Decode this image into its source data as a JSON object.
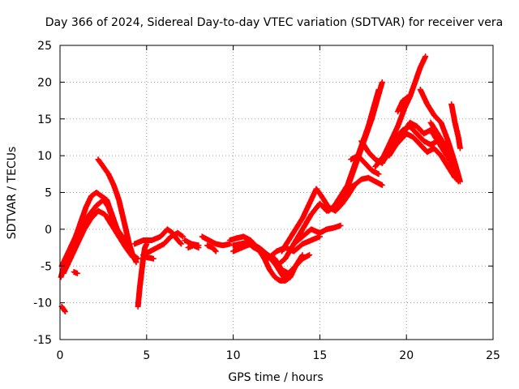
{
  "chart_data": {
    "type": "scatter",
    "title": "Day 366 of 2024, Sidereal Day-to-day VTEC variation (SDTVAR) for receiver vera",
    "xlabel": "GPS time / hours",
    "ylabel": "SDTVAR / TECUs",
    "xlim": [
      0,
      25
    ],
    "ylim": [
      -15,
      25
    ],
    "xticks": [
      "0",
      "5",
      "10",
      "15",
      "20",
      "25"
    ],
    "yticks": [
      "-15",
      "-10",
      "-5",
      "0",
      "5",
      "10",
      "15",
      "20",
      "25"
    ],
    "grid": true,
    "marker": "+",
    "series_color": "#ff0000",
    "traces": [
      [
        [
          0.05,
          -6.5
        ],
        [
          0.3,
          -4.5
        ],
        [
          0.6,
          -2.5
        ],
        [
          0.9,
          -1
        ],
        [
          1.2,
          1
        ],
        [
          1.5,
          3
        ],
        [
          1.8,
          4.5
        ],
        [
          2.1,
          5
        ],
        [
          2.4,
          4.5
        ],
        [
          2.7,
          4
        ],
        [
          3.0,
          2
        ],
        [
          3.3,
          0
        ],
        [
          3.6,
          -1
        ],
        [
          3.9,
          -2.5
        ],
        [
          4.2,
          -3.5
        ],
        [
          4.5,
          -4
        ]
      ],
      [
        [
          0.1,
          -5
        ],
        [
          0.5,
          -3
        ],
        [
          0.9,
          -1.5
        ],
        [
          1.3,
          0.5
        ],
        [
          1.7,
          2
        ],
        [
          2.1,
          3.2
        ],
        [
          2.5,
          4
        ],
        [
          2.8,
          3
        ],
        [
          3.1,
          1
        ],
        [
          3.4,
          -0.5
        ],
        [
          3.7,
          -1.8
        ],
        [
          4.0,
          -3
        ]
      ],
      [
        [
          0.2,
          -6
        ],
        [
          0.6,
          -4
        ],
        [
          1.0,
          -2
        ],
        [
          1.4,
          0
        ],
        [
          1.8,
          1.5
        ],
        [
          2.2,
          2.5
        ],
        [
          2.6,
          2
        ],
        [
          3.0,
          0.5
        ],
        [
          3.4,
          -1
        ],
        [
          3.8,
          -2.5
        ],
        [
          4.2,
          -3.8
        ]
      ],
      [
        [
          2.2,
          9.5
        ],
        [
          2.5,
          8.5
        ],
        [
          2.8,
          7.5
        ],
        [
          3.1,
          6
        ],
        [
          3.4,
          4
        ],
        [
          3.6,
          2
        ],
        [
          3.8,
          0
        ],
        [
          4.0,
          -2
        ],
        [
          4.2,
          -3.5
        ],
        [
          4.4,
          -4.5
        ]
      ],
      [
        [
          0.1,
          -10.5
        ],
        [
          0.3,
          -11.2
        ]
      ],
      [
        [
          0.8,
          -5.8
        ],
        [
          1.0,
          -6
        ]
      ],
      [
        [
          4.5,
          -10.5
        ],
        [
          4.6,
          -8
        ],
        [
          4.7,
          -6
        ],
        [
          4.8,
          -4
        ],
        [
          4.9,
          -2.5
        ],
        [
          5.0,
          -2
        ]
      ],
      [
        [
          4.3,
          -2
        ],
        [
          4.8,
          -1.5
        ],
        [
          5.3,
          -1.5
        ],
        [
          5.8,
          -1
        ],
        [
          6.2,
          0
        ],
        [
          6.5,
          -0.5
        ],
        [
          6.8,
          -1.5
        ],
        [
          7.0,
          -2
        ]
      ],
      [
        [
          4.8,
          -3.5
        ],
        [
          5.2,
          -3
        ],
        [
          5.6,
          -2.5
        ],
        [
          6.0,
          -2
        ],
        [
          6.4,
          -1
        ],
        [
          6.8,
          -0.5
        ],
        [
          7.1,
          -1
        ]
      ],
      [
        [
          5.0,
          -3.8
        ],
        [
          5.4,
          -4
        ]
      ],
      [
        [
          7.2,
          -1.5
        ],
        [
          7.6,
          -2
        ],
        [
          8.0,
          -2.2
        ]
      ],
      [
        [
          7.4,
          -2.5
        ],
        [
          7.7,
          -2.2
        ],
        [
          8.0,
          -2.5
        ]
      ],
      [
        [
          8.2,
          -1
        ],
        [
          8.6,
          -1.5
        ],
        [
          9.0,
          -2
        ],
        [
          9.4,
          -2.2
        ],
        [
          9.8,
          -2
        ]
      ],
      [
        [
          8.5,
          -2.2
        ],
        [
          8.8,
          -2.5
        ],
        [
          9.0,
          -3
        ]
      ],
      [
        [
          9.8,
          -1.5
        ],
        [
          10.2,
          -1.2
        ],
        [
          10.6,
          -1
        ],
        [
          11.0,
          -1.5
        ],
        [
          11.4,
          -2.5
        ],
        [
          11.8,
          -4
        ],
        [
          12.1,
          -5.5
        ],
        [
          12.4,
          -6.5
        ],
        [
          12.7,
          -7
        ],
        [
          13.0,
          -7
        ],
        [
          13.3,
          -6.5
        ],
        [
          13.6,
          -5
        ],
        [
          14.0,
          -3.5
        ]
      ],
      [
        [
          10.0,
          -2.2
        ],
        [
          10.4,
          -2
        ],
        [
          10.8,
          -1.8
        ],
        [
          11.2,
          -2.5
        ],
        [
          11.6,
          -3
        ],
        [
          12.0,
          -3.5
        ],
        [
          12.4,
          -4
        ],
        [
          12.8,
          -5.5
        ],
        [
          13.2,
          -6
        ],
        [
          13.6,
          -5
        ],
        [
          14.0,
          -4
        ],
        [
          14.4,
          -3.5
        ]
      ],
      [
        [
          10.0,
          -3
        ],
        [
          10.5,
          -2.5
        ],
        [
          11.0,
          -2
        ],
        [
          11.5,
          -2.5
        ],
        [
          12.0,
          -3.5
        ],
        [
          12.5,
          -5
        ],
        [
          12.9,
          -6.5
        ],
        [
          13.3,
          -6
        ]
      ],
      [
        [
          12.0,
          -4
        ],
        [
          12.5,
          -3
        ],
        [
          13.0,
          -2.5
        ],
        [
          13.5,
          -3
        ],
        [
          14.0,
          -2
        ],
        [
          14.5,
          -1.5
        ],
        [
          15.0,
          -1
        ]
      ],
      [
        [
          12.5,
          -5
        ],
        [
          13.0,
          -4
        ],
        [
          13.5,
          -2
        ],
        [
          14.0,
          -1
        ],
        [
          14.5,
          0
        ],
        [
          15.0,
          -0.5
        ],
        [
          15.4,
          0
        ],
        [
          15.8,
          0.2
        ],
        [
          16.2,
          0.5
        ]
      ],
      [
        [
          12.8,
          -3
        ],
        [
          13.2,
          -1.5
        ],
        [
          13.6,
          0
        ],
        [
          14.0,
          1.5
        ],
        [
          14.4,
          3.5
        ],
        [
          14.8,
          5.5
        ],
        [
          15.1,
          4.5
        ],
        [
          15.5,
          3
        ],
        [
          15.9,
          2.5
        ],
        [
          16.3,
          3.5
        ],
        [
          16.6,
          4.5
        ],
        [
          17.0,
          6
        ]
      ],
      [
        [
          13.5,
          -2
        ],
        [
          14.0,
          0
        ],
        [
          14.5,
          2
        ],
        [
          15.0,
          3.5
        ],
        [
          15.4,
          2.5
        ],
        [
          15.8,
          3
        ],
        [
          16.2,
          4.5
        ],
        [
          16.6,
          5.5
        ],
        [
          17.0,
          6
        ],
        [
          17.4,
          6.8
        ],
        [
          17.8,
          7
        ],
        [
          18.2,
          6.5
        ],
        [
          18.6,
          6
        ]
      ],
      [
        [
          15.5,
          2.5
        ],
        [
          16.0,
          3.5
        ],
        [
          16.5,
          5
        ],
        [
          16.8,
          7
        ],
        [
          17.1,
          9
        ],
        [
          17.4,
          11
        ],
        [
          17.7,
          13
        ],
        [
          18.0,
          15
        ],
        [
          18.3,
          17.5
        ],
        [
          18.6,
          20
        ]
      ],
      [
        [
          15.8,
          3
        ],
        [
          16.2,
          4.5
        ],
        [
          16.6,
          6
        ],
        [
          16.9,
          8
        ],
        [
          17.2,
          10
        ],
        [
          17.5,
          12
        ],
        [
          17.8,
          14
        ],
        [
          18.1,
          16.5
        ],
        [
          18.4,
          19
        ]
      ],
      [
        [
          16.8,
          9.5
        ],
        [
          17.2,
          10
        ],
        [
          17.6,
          9
        ],
        [
          18.0,
          8
        ],
        [
          18.4,
          7.5
        ]
      ],
      [
        [
          17.4,
          12
        ],
        [
          17.8,
          10.5
        ],
        [
          18.2,
          9.5
        ],
        [
          18.6,
          9
        ]
      ],
      [
        [
          18.2,
          8.5
        ],
        [
          18.7,
          10
        ],
        [
          19.1,
          12
        ],
        [
          19.5,
          14
        ],
        [
          19.9,
          16.5
        ],
        [
          20.2,
          18
        ],
        [
          20.5,
          20
        ],
        [
          20.8,
          22
        ],
        [
          21.1,
          23.5
        ]
      ],
      [
        [
          18.6,
          9
        ],
        [
          19.0,
          10.5
        ],
        [
          19.4,
          12.5
        ],
        [
          19.8,
          13.5
        ],
        [
          20.2,
          14
        ],
        [
          20.6,
          13
        ],
        [
          21.0,
          12
        ],
        [
          21.4,
          11.5
        ],
        [
          21.8,
          12
        ],
        [
          22.2,
          11
        ],
        [
          22.6,
          10
        ]
      ],
      [
        [
          19.0,
          10
        ],
        [
          19.4,
          11.5
        ],
        [
          19.8,
          13
        ],
        [
          20.2,
          14.5
        ],
        [
          20.6,
          14
        ],
        [
          21.0,
          13
        ],
        [
          21.4,
          13.5
        ],
        [
          21.8,
          12
        ],
        [
          22.2,
          10.5
        ],
        [
          22.6,
          9
        ],
        [
          23.0,
          7
        ]
      ],
      [
        [
          19.2,
          11
        ],
        [
          19.6,
          12
        ],
        [
          20.0,
          13
        ],
        [
          20.4,
          12.5
        ],
        [
          20.8,
          11.5
        ],
        [
          21.2,
          10.5
        ],
        [
          21.6,
          11
        ],
        [
          22.0,
          10
        ],
        [
          22.4,
          8.5
        ],
        [
          22.8,
          7
        ]
      ],
      [
        [
          19.5,
          16
        ],
        [
          19.8,
          17.5
        ],
        [
          20.1,
          18
        ]
      ],
      [
        [
          20.8,
          19
        ],
        [
          21.2,
          17
        ],
        [
          21.6,
          15.5
        ],
        [
          22.0,
          14.5
        ],
        [
          22.4,
          12
        ],
        [
          22.8,
          9
        ],
        [
          23.1,
          6.5
        ]
      ],
      [
        [
          21.4,
          14.5
        ],
        [
          21.8,
          13
        ],
        [
          22.2,
          11.5
        ],
        [
          22.6,
          9
        ],
        [
          23.0,
          6.5
        ]
      ],
      [
        [
          22.6,
          17
        ],
        [
          22.8,
          14.5
        ],
        [
          23.0,
          12.5
        ],
        [
          23.1,
          11
        ]
      ]
    ]
  }
}
